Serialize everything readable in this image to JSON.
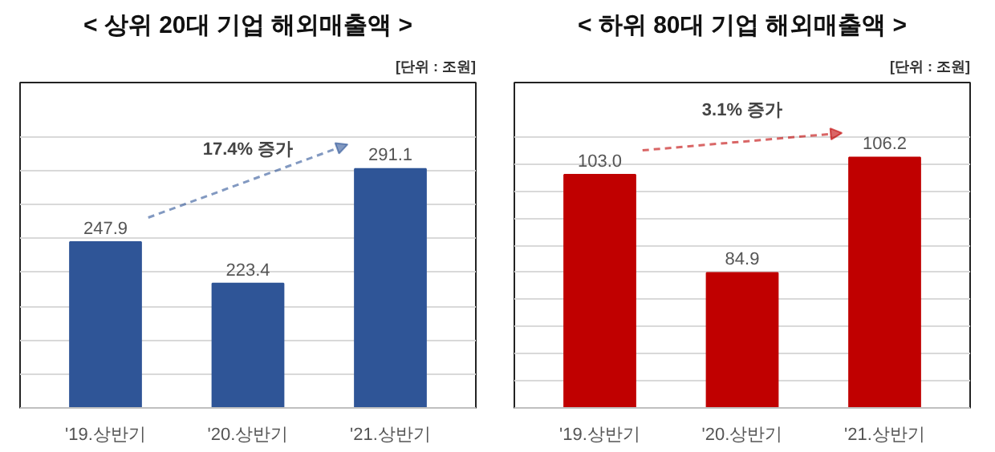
{
  "chart_data": [
    {
      "type": "bar",
      "title": "< 상위 20대 기업 해외매출액 >",
      "subtitle": "[단위 : 조원]",
      "annotations": [
        "17.4% 증가"
      ],
      "categories": [
        "'19.상반기",
        "'20.상반기",
        "'21.상반기"
      ],
      "values": [
        247.9,
        223.4,
        291.1
      ],
      "color": "#2f5597",
      "ylim": [
        150,
        310
      ],
      "yticks": [
        {
          "value": 150,
          "label": null
        },
        {
          "value": 170,
          "label": null
        },
        {
          "value": 190,
          "label": null
        },
        {
          "value": 210,
          "label": null
        },
        {
          "value": 230,
          "label": null
        },
        {
          "value": 250,
          "label": null
        },
        {
          "value": 270,
          "label": null
        },
        {
          "value": 290,
          "label": null
        },
        {
          "value": 310,
          "label": null
        }
      ],
      "grid": "y",
      "value_labels": [
        "247.9",
        "223.4",
        "291.1"
      ]
    },
    {
      "type": "bar",
      "title": "< 하위 80대 기업 해외매출액 >",
      "subtitle": "[단위 : 조원]",
      "annotations": [
        "3.1% 증가"
      ],
      "categories": [
        "'19.상반기",
        "'20.상반기",
        "'21.상반기"
      ],
      "values": [
        103.0,
        84.9,
        106.2
      ],
      "color": "#c00000",
      "ylim": [
        60,
        110
      ],
      "yticks": [
        {
          "value": 60,
          "label": null
        },
        {
          "value": 65,
          "label": null
        },
        {
          "value": 70,
          "label": null
        },
        {
          "value": 75,
          "label": null
        },
        {
          "value": 80,
          "label": null
        },
        {
          "value": 85,
          "label": null
        },
        {
          "value": 90,
          "label": null
        },
        {
          "value": 95,
          "label": null
        },
        {
          "value": 100,
          "label": null
        },
        {
          "value": 105,
          "label": null
        },
        {
          "value": 110,
          "label": null
        }
      ],
      "grid": "y",
      "value_labels": [
        "103.0",
        "84.9",
        "106.2"
      ]
    }
  ]
}
